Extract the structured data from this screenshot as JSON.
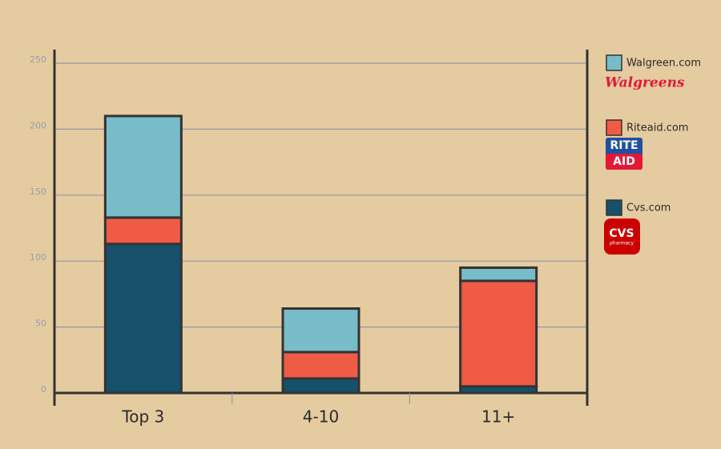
{
  "chart_data": {
    "type": "stacked_bar",
    "categories": [
      "Top 3",
      "4-10",
      "11+"
    ],
    "series": [
      {
        "name": "Cvs.com",
        "color": "#16506b",
        "values": [
          113,
          11,
          5
        ],
        "logo": [
          "CVS",
          "pharmacy"
        ],
        "logo_color": "#cc0000"
      },
      {
        "name": "Riteaid.com",
        "color": "#ef5b45",
        "values": [
          20,
          20,
          80
        ],
        "logo": [
          "RITE",
          "AID"
        ],
        "logo_color": "#2150a0"
      },
      {
        "name": "Walgreen.com",
        "color": "#78bcc9",
        "values": [
          77,
          33,
          10
        ],
        "logo": [
          "Walgreens"
        ],
        "logo_color": "#e31837"
      }
    ],
    "ylim": [
      0,
      250
    ],
    "yticks": [
      0,
      50,
      100,
      150,
      200,
      250
    ],
    "grid": true
  }
}
